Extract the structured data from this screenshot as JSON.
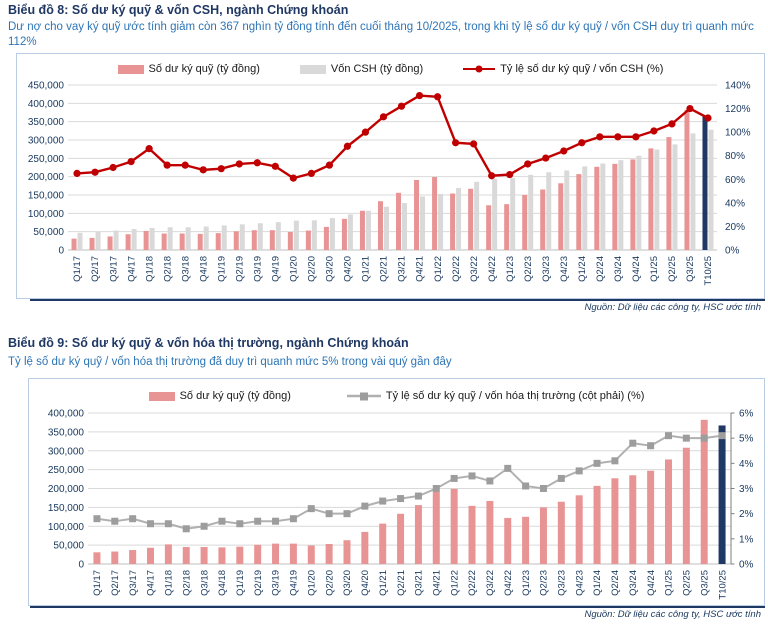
{
  "accent_colors": {
    "title_navy": "#1f3864",
    "subtitle_blue": "#2e75b6",
    "margin_bar_pink": "#e89494",
    "equity_bar_gray": "#d9d9d9",
    "ratio_line_red": "#c00000",
    "highlight_bar_navy": "#1f3864",
    "mktcap_line_gray": "#b0b0b0"
  },
  "chart_data": [
    {
      "type": "bar+line",
      "title": "Biểu đồ 8: Số dư ký quỹ & vốn CSH, ngành Chứng khoán",
      "subtitle": "Dư nợ cho vay ký quỹ ước tính giảm còn 367 nghìn tỷ đồng tính đến cuối tháng 10/2025, trong khi tỷ lệ số dư ký quỹ / vốn CSH duy trì quanh mức 112%",
      "source": "Nguồn: Dữ liệu các công ty, HSC ước tính",
      "legend_position": "top-center",
      "grid": true,
      "categories": [
        "Q1/17",
        "Q2/17",
        "Q3/17",
        "Q4/17",
        "Q1/18",
        "Q2/18",
        "Q3/18",
        "Q4/18",
        "Q1/19",
        "Q2/19",
        "Q3/19",
        "Q4/19",
        "Q1/20",
        "Q2/20",
        "Q3/20",
        "Q4/20",
        "Q1/21",
        "Q2/21",
        "Q3/21",
        "Q4/21",
        "Q1/22",
        "Q2/22",
        "Q3/22",
        "Q4/22",
        "Q1/23",
        "Q2/23",
        "Q3/23",
        "Q4/23",
        "Q1/24",
        "Q2/24",
        "Q3/24",
        "Q4/24",
        "Q1/25",
        "Q2/25",
        "Q3/25",
        "T10/25"
      ],
      "left_axis": {
        "min": 0,
        "max": 450000,
        "step": 50000,
        "labels": [
          "0",
          "50,000",
          "100,000",
          "150,000",
          "200,000",
          "250,000",
          "300,000",
          "350,000",
          "400,000",
          "450,000"
        ]
      },
      "right_axis": {
        "min": 0,
        "max": 140,
        "step": 20,
        "labels": [
          "0%",
          "20%",
          "40%",
          "60%",
          "80%",
          "100%",
          "120%",
          "140%"
        ]
      },
      "series": [
        {
          "name": "Số dư ký quỹ (tỷ đồng)",
          "type": "bar",
          "axis": "left",
          "color": "#e89494",
          "last_color": "#1f3864",
          "values": [
            31000,
            33000,
            37000,
            43000,
            52000,
            45000,
            45000,
            44000,
            46000,
            51000,
            54000,
            54000,
            49000,
            53000,
            63000,
            85000,
            107000,
            133000,
            156000,
            191000,
            199000,
            154000,
            167000,
            122000,
            125000,
            150000,
            165000,
            182000,
            207000,
            227000,
            235000,
            247000,
            277000,
            308000,
            382000,
            367000
          ]
        },
        {
          "name": "Vốn CSH (tỷ đồng)",
          "type": "bar",
          "axis": "left",
          "color": "#d9d9d9",
          "values": [
            47000,
            50000,
            53000,
            57000,
            60000,
            62000,
            62000,
            64000,
            67000,
            70000,
            73000,
            76000,
            80000,
            81000,
            87000,
            97000,
            107000,
            118000,
            128000,
            146000,
            153000,
            169000,
            186000,
            194000,
            196000,
            205000,
            212000,
            217000,
            228000,
            236000,
            245000,
            257000,
            274000,
            288000,
            318000,
            328000
          ]
        },
        {
          "name": "Tỷ lệ số dư ký quỹ / vốn CSH (%)",
          "type": "line",
          "axis": "right",
          "color": "#c00000",
          "marker": "circle",
          "values": [
            65,
            66,
            70,
            75,
            86,
            72,
            72,
            68,
            69,
            73,
            74,
            71,
            61,
            65,
            72,
            88,
            100,
            113,
            122,
            131,
            130,
            91,
            90,
            63,
            64,
            73,
            78,
            84,
            91,
            96,
            96,
            96,
            101,
            107,
            120,
            112
          ]
        }
      ]
    },
    {
      "type": "bar+line",
      "title": "Biểu đồ 9: Số dư ký quỹ & vốn hóa thị trường, ngành Chứng khoán",
      "subtitle": "Tỷ lệ số dư ký quỹ / vốn hóa thị trường đã duy trì quanh mức 5% trong vài quý gần đây",
      "source": "Nguồn: Dữ liệu các công ty, HSC ước tính",
      "legend_position": "top-center",
      "grid": true,
      "categories": [
        "Q1/17",
        "Q2/17",
        "Q3/17",
        "Q4/17",
        "Q1/18",
        "Q2/18",
        "Q3/18",
        "Q4/18",
        "Q1/19",
        "Q2/19",
        "Q3/19",
        "Q4/19",
        "Q1/20",
        "Q2/20",
        "Q3/20",
        "Q4/20",
        "Q1/21",
        "Q2/21",
        "Q3/21",
        "Q4/21",
        "Q1/22",
        "Q2/22",
        "Q3/22",
        "Q4/22",
        "Q1/23",
        "Q2/23",
        "Q3/23",
        "Q4/23",
        "Q1/24",
        "Q2/24",
        "Q3/24",
        "Q4/24",
        "Q1/25",
        "Q2/25",
        "Q3/25",
        "T10/25"
      ],
      "left_axis": {
        "min": 0,
        "max": 400000,
        "step": 50000,
        "labels": [
          "0",
          "50,000",
          "100,000",
          "150,000",
          "200,000",
          "250,000",
          "300,000",
          "350,000",
          "400,000"
        ]
      },
      "right_axis": {
        "min": 0,
        "max": 6,
        "step": 1,
        "labels": [
          "0%",
          "1%",
          "2%",
          "3%",
          "4%",
          "5%",
          "6%"
        ]
      },
      "series": [
        {
          "name": "Số dư ký quỹ (tỷ đồng)",
          "type": "bar",
          "axis": "left",
          "color": "#e89494",
          "last_color": "#1f3864",
          "values": [
            31000,
            33000,
            37000,
            43000,
            52000,
            45000,
            45000,
            44000,
            46000,
            51000,
            54000,
            54000,
            49000,
            53000,
            63000,
            85000,
            107000,
            133000,
            156000,
            191000,
            199000,
            154000,
            167000,
            122000,
            125000,
            150000,
            165000,
            182000,
            207000,
            227000,
            235000,
            247000,
            277000,
            308000,
            382000,
            367000
          ]
        },
        {
          "name": "Tỷ lệ số dư ký quỹ / vốn hóa thị trường (cột phải) (%)",
          "type": "line",
          "axis": "right",
          "color": "#b0b0b0",
          "marker": "square",
          "marker_color": "#9d9d9d",
          "values": [
            1.8,
            1.7,
            1.8,
            1.6,
            1.6,
            1.4,
            1.5,
            1.7,
            1.6,
            1.7,
            1.7,
            1.8,
            2.2,
            2.0,
            2.0,
            2.3,
            2.5,
            2.6,
            2.7,
            3.0,
            3.4,
            3.5,
            3.3,
            3.8,
            3.1,
            3.0,
            3.4,
            3.7,
            4.0,
            4.1,
            4.8,
            4.7,
            5.1,
            5.0,
            5.0,
            5.1
          ]
        }
      ]
    }
  ]
}
